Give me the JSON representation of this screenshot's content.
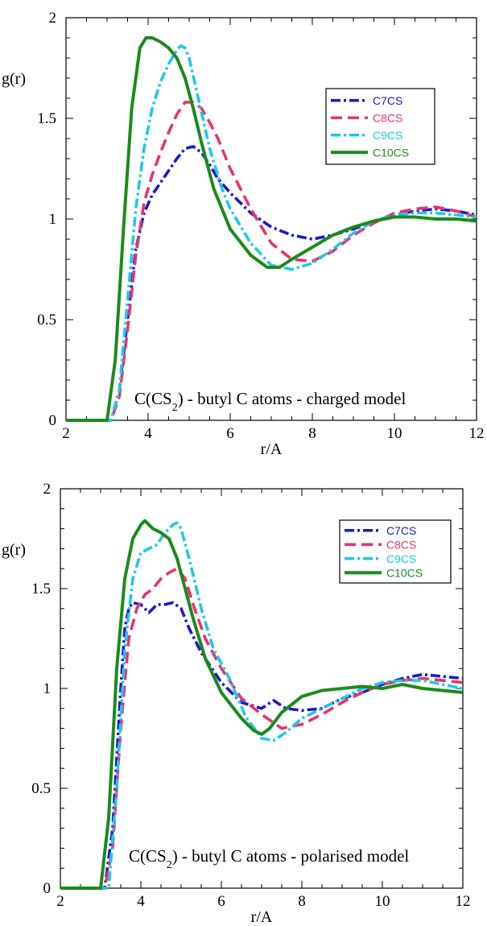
{
  "chart_data": [
    {
      "type": "line",
      "xlabel": "r/A",
      "ylabel": "g(r)",
      "xlim": [
        2,
        12
      ],
      "ylim": [
        0,
        2
      ],
      "xticks": [
        "2",
        "4",
        "6",
        "8",
        "10",
        "12"
      ],
      "yticks": [
        "0",
        "0.5",
        "1",
        "1.5",
        "2"
      ],
      "annotation": {
        "pre": "C(CS",
        "sub": "2",
        "post": ") - butyl C atoms - charged model"
      },
      "legend_position": "top-right",
      "series": [
        {
          "name": "C7CS",
          "color": "#1a1acc",
          "dash": "dashdot",
          "x": [
            2,
            3.1,
            3.3,
            3.5,
            3.7,
            3.9,
            4.1,
            4.3,
            4.5,
            4.7,
            4.9,
            5.1,
            5.3,
            5.5,
            5.7,
            6,
            6.5,
            7,
            7.5,
            8,
            8.5,
            9,
            9.5,
            10,
            10.5,
            11,
            11.5,
            12
          ],
          "y": [
            0,
            0,
            0.15,
            0.5,
            0.85,
            1.03,
            1.12,
            1.18,
            1.24,
            1.3,
            1.35,
            1.36,
            1.33,
            1.27,
            1.2,
            1.13,
            1.03,
            0.96,
            0.92,
            0.9,
            0.92,
            0.95,
            0.99,
            1.02,
            1.04,
            1.05,
            1.04,
            1.02
          ]
        },
        {
          "name": "C8CS",
          "color": "#e8336e",
          "dash": "dash",
          "x": [
            2,
            3.1,
            3.3,
            3.5,
            3.7,
            3.9,
            4.1,
            4.3,
            4.5,
            4.7,
            4.9,
            5.1,
            5.3,
            5.5,
            5.7,
            6,
            6.5,
            7,
            7.5,
            8,
            8.5,
            9,
            9.5,
            10,
            10.5,
            11,
            11.5,
            12
          ],
          "y": [
            0,
            0,
            0.12,
            0.45,
            0.82,
            1.08,
            1.22,
            1.33,
            1.43,
            1.52,
            1.58,
            1.58,
            1.55,
            1.48,
            1.4,
            1.25,
            1.05,
            0.88,
            0.8,
            0.79,
            0.84,
            0.92,
            0.98,
            1.03,
            1.05,
            1.06,
            1.04,
            1.01
          ]
        },
        {
          "name": "C9CS",
          "color": "#1ec8e8",
          "dash": "dashdot",
          "x": [
            2,
            3.1,
            3.3,
            3.5,
            3.7,
            3.9,
            4.1,
            4.3,
            4.5,
            4.7,
            4.8,
            4.9,
            5.0,
            5.2,
            5.5,
            5.8,
            6,
            6.5,
            7,
            7.5,
            8,
            8.5,
            9,
            9.5,
            10,
            10.5,
            11,
            11.5,
            12
          ],
          "y": [
            0,
            0,
            0.15,
            0.6,
            1.05,
            1.35,
            1.55,
            1.68,
            1.77,
            1.84,
            1.86,
            1.85,
            1.8,
            1.62,
            1.35,
            1.15,
            1.05,
            0.88,
            0.77,
            0.75,
            0.78,
            0.85,
            0.93,
            0.99,
            1.02,
            1.03,
            1.03,
            1.02,
            1.01
          ]
        },
        {
          "name": "C10CS",
          "color": "#1c8a1c",
          "dash": "solid",
          "x": [
            2,
            3.0,
            3.2,
            3.4,
            3.6,
            3.8,
            3.95,
            4.1,
            4.3,
            4.5,
            4.7,
            4.9,
            5.1,
            5.3,
            5.6,
            6,
            6.5,
            6.9,
            7.2,
            7.5,
            8,
            8.5,
            9,
            9.5,
            10,
            10.5,
            11,
            11.5,
            12
          ],
          "y": [
            0,
            0,
            0.3,
            0.95,
            1.55,
            1.85,
            1.9,
            1.9,
            1.88,
            1.85,
            1.8,
            1.7,
            1.55,
            1.38,
            1.15,
            0.95,
            0.82,
            0.76,
            0.76,
            0.8,
            0.86,
            0.92,
            0.96,
            0.99,
            1.01,
            1.01,
            1.0,
            1.0,
            0.99
          ]
        }
      ]
    },
    {
      "type": "line",
      "xlabel": "r/A",
      "ylabel": "g(r)",
      "xlim": [
        2,
        12
      ],
      "ylim": [
        0,
        2
      ],
      "xticks": [
        "2",
        "4",
        "6",
        "8",
        "10",
        "12"
      ],
      "yticks": [
        "0",
        "0.5",
        "1",
        "1.5",
        "2"
      ],
      "annotation": {
        "pre": "C(CS",
        "sub": "2",
        "post": ") - butyl C atoms - polarised model"
      },
      "legend_position": "top-right",
      "series": [
        {
          "name": "C7CS",
          "color": "#1a1acc",
          "dash": "dashdot",
          "x": [
            2,
            3.1,
            3.3,
            3.5,
            3.6,
            3.7,
            3.8,
            4.0,
            4.2,
            4.4,
            4.6,
            4.8,
            5.0,
            5.2,
            5.5,
            6,
            6.5,
            7,
            7.3,
            7.6,
            8,
            8.5,
            9,
            9.5,
            10,
            10.5,
            11,
            11.5,
            12
          ],
          "y": [
            0,
            0,
            0.3,
            1.0,
            1.3,
            1.4,
            1.43,
            1.42,
            1.38,
            1.42,
            1.42,
            1.43,
            1.4,
            1.3,
            1.18,
            1.03,
            0.93,
            0.9,
            0.94,
            0.9,
            0.89,
            0.9,
            0.95,
            0.98,
            1.02,
            1.05,
            1.07,
            1.06,
            1.05
          ]
        },
        {
          "name": "C8CS",
          "color": "#e8336e",
          "dash": "dash",
          "x": [
            2,
            3.1,
            3.3,
            3.5,
            3.7,
            3.9,
            4.1,
            4.3,
            4.5,
            4.7,
            4.9,
            5.1,
            5.3,
            5.6,
            6,
            6.5,
            7,
            7.5,
            8,
            8.5,
            9,
            9.5,
            10,
            10.5,
            11,
            11.5,
            12
          ],
          "y": [
            0,
            0,
            0.2,
            0.8,
            1.25,
            1.4,
            1.47,
            1.5,
            1.55,
            1.58,
            1.6,
            1.55,
            1.42,
            1.25,
            1.1,
            0.95,
            0.87,
            0.8,
            0.82,
            0.87,
            0.93,
            0.98,
            1.02,
            1.04,
            1.05,
            1.04,
            1.03
          ]
        },
        {
          "name": "C9CS",
          "color": "#1ec8e8",
          "dash": "dashdot",
          "x": [
            2,
            3.2,
            3.4,
            3.6,
            3.8,
            4.0,
            4.2,
            4.4,
            4.6,
            4.8,
            4.9,
            5.0,
            5.2,
            5.5,
            5.8,
            6.2,
            6.6,
            7.0,
            7.3,
            7.6,
            8,
            8.5,
            9,
            9.5,
            10,
            10.5,
            11,
            11.5,
            12
          ],
          "y": [
            0,
            0,
            0.5,
            1.2,
            1.55,
            1.68,
            1.7,
            1.72,
            1.78,
            1.82,
            1.83,
            1.8,
            1.65,
            1.4,
            1.2,
            1.05,
            0.86,
            0.75,
            0.74,
            0.78,
            0.85,
            0.9,
            0.95,
            1.0,
            1.03,
            1.04,
            1.04,
            1.02,
            1.0
          ]
        },
        {
          "name": "C10CS",
          "color": "#1c8a1c",
          "dash": "solid",
          "x": [
            2,
            3.0,
            3.2,
            3.4,
            3.6,
            3.8,
            4.0,
            4.1,
            4.3,
            4.5,
            4.7,
            4.9,
            5.1,
            5.3,
            5.6,
            6,
            6.5,
            6.8,
            7.0,
            7.2,
            7.5,
            8,
            8.5,
            9,
            9.5,
            10,
            10.5,
            11,
            11.5,
            12
          ],
          "y": [
            0,
            0,
            0.35,
            1.1,
            1.55,
            1.75,
            1.82,
            1.84,
            1.8,
            1.78,
            1.75,
            1.65,
            1.5,
            1.35,
            1.15,
            0.98,
            0.85,
            0.79,
            0.77,
            0.8,
            0.88,
            0.96,
            0.99,
            1.0,
            1.01,
            1.0,
            1.02,
            1.0,
            0.99,
            0.98
          ]
        }
      ]
    }
  ]
}
